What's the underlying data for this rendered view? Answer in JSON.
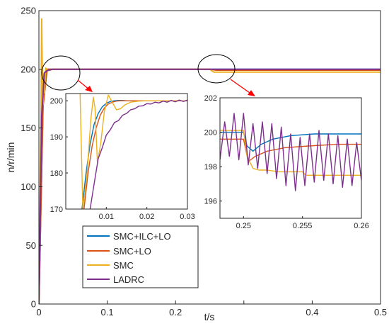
{
  "colors": {
    "smc_ilc_lo": "#0072BD",
    "smc_lo": "#D95319",
    "smc": "#EDB120",
    "ladrc": "#7E2F8E",
    "callout_arrow": "#FF0000",
    "axis": "#262626"
  },
  "chart_data": [
    {
      "id": "main",
      "type": "line",
      "title": "",
      "xlabel": "t/s",
      "ylabel": "n/r/min",
      "xlim": [
        0,
        0.5
      ],
      "ylim": [
        0,
        250
      ],
      "xticks": [
        0,
        0.1,
        0.2,
        0.3,
        0.4,
        0.5
      ],
      "xtick_labels": [
        "0",
        "0.1",
        "0.2",
        "",
        "0.4",
        "0.5"
      ],
      "yticks": [
        0,
        50,
        100,
        150,
        200,
        250
      ],
      "ytick_labels": [
        "0",
        "50",
        "100",
        "150",
        "200",
        "250"
      ],
      "grid": false,
      "legend": {
        "placement": "bottom-left",
        "entries": [
          "SMC+ILC+LO",
          "SMC+LO",
          "SMC",
          "LADRC"
        ]
      },
      "series": [
        {
          "name": "SMC+ILC+LO",
          "color_key": "smc_ilc_lo",
          "x": [
            0,
            0.006,
            0.012,
            0.5
          ],
          "y": [
            0,
            170,
            200,
            200
          ]
        },
        {
          "name": "SMC+LO",
          "color_key": "smc_lo",
          "x": [
            0,
            0.006,
            0.012,
            0.25,
            0.26,
            0.5
          ],
          "y": [
            0,
            168,
            200,
            200,
            199.3,
            199.3
          ]
        },
        {
          "name": "SMC",
          "color_key": "smc",
          "x": [
            0,
            0.003,
            0.004,
            0.005,
            0.006,
            0.007,
            0.008,
            0.01,
            0.014,
            0.02,
            0.25,
            0.256,
            0.5
          ],
          "y": [
            0,
            150,
            243,
            200,
            170,
            196,
            180,
            201,
            199,
            200,
            200,
            197.6,
            197.6
          ]
        },
        {
          "name": "LADRC",
          "color_key": "ladrc",
          "x": [
            0,
            0.004,
            0.008,
            0.012,
            0.016,
            0.02,
            0.025,
            0.03,
            0.5
          ],
          "y": [
            0,
            160,
            197,
            199,
            199.5,
            200,
            200,
            200,
            200
          ]
        }
      ],
      "callouts": [
        {
          "from_circle": "left",
          "to_inset": "inset_start"
        },
        {
          "from_circle": "right",
          "to_inset": "inset_step"
        }
      ]
    },
    {
      "id": "inset_start",
      "type": "line",
      "xlim": [
        0,
        0.03
      ],
      "ylim": [
        170,
        202
      ],
      "xticks": [
        0.01,
        0.02,
        0.03
      ],
      "xtick_labels": [
        "0.01",
        "0.02",
        "0.03"
      ],
      "yticks": [
        170,
        180,
        190,
        200
      ],
      "ytick_labels": [
        "170",
        "180",
        "190",
        "200"
      ],
      "series": [
        {
          "name": "SMC+ILC+LO",
          "color_key": "smc_ilc_lo",
          "x": [
            0.004,
            0.005,
            0.006,
            0.007,
            0.008,
            0.009,
            0.01,
            0.011,
            0.012,
            0.013,
            0.014,
            0.015,
            0.03
          ],
          "y": [
            170,
            180,
            188,
            193.5,
            196.5,
            198.3,
            199.3,
            199.8,
            200,
            200.1,
            200.1,
            200,
            200
          ]
        },
        {
          "name": "SMC+LO",
          "color_key": "smc_lo",
          "x": [
            0.0045,
            0.0055,
            0.0065,
            0.0075,
            0.0085,
            0.0095,
            0.0105,
            0.0115,
            0.0125,
            0.0135,
            0.015,
            0.03
          ],
          "y": [
            170,
            180,
            187.5,
            192.5,
            196,
            198,
            199.1,
            199.6,
            199.9,
            200,
            200,
            200
          ]
        },
        {
          "name": "SMC",
          "color_key": "smc",
          "x": [
            0.0035,
            0.0042,
            0.0052,
            0.0062,
            0.0068,
            0.0072,
            0.0078,
            0.0086,
            0.0095,
            0.0105,
            0.0115,
            0.0125,
            0.0135,
            0.0145,
            0.016,
            0.018,
            0.02,
            0.025,
            0.03
          ],
          "y": [
            203,
            170,
            179,
            195,
            201,
            198,
            183,
            188,
            197,
            201.6,
            199.5,
            197.5,
            197.8,
            198.8,
            199.6,
            199.9,
            200,
            200,
            200
          ]
        },
        {
          "name": "LADRC",
          "color_key": "ladrc",
          "x": [
            0.006,
            0.007,
            0.008,
            0.009,
            0.01,
            0.011,
            0.012,
            0.013,
            0.014,
            0.015,
            0.016,
            0.017,
            0.018,
            0.019,
            0.02,
            0.021,
            0.022,
            0.023,
            0.024,
            0.025,
            0.026,
            0.027,
            0.028,
            0.029,
            0.03
          ],
          "y": [
            170,
            177,
            184,
            187,
            190.5,
            192,
            194,
            194.5,
            196,
            196.5,
            197.5,
            197.8,
            198.5,
            198.6,
            199.2,
            199.1,
            199.6,
            199.4,
            199.9,
            199.6,
            200.1,
            199.7,
            200.2,
            199.8,
            200.2
          ]
        }
      ]
    },
    {
      "id": "inset_step",
      "type": "line",
      "xlim": [
        0.248,
        0.26
      ],
      "ylim": [
        195,
        202
      ],
      "xticks": [
        0.25,
        0.255,
        0.26
      ],
      "xtick_labels": [
        "0.25",
        "0.255",
        "0.26"
      ],
      "yticks": [
        196,
        198,
        200,
        202
      ],
      "ytick_labels": [
        "196",
        "198",
        "200",
        "202"
      ],
      "series": [
        {
          "name": "SMC+ILC+LO",
          "color_key": "smc_ilc_lo",
          "x": [
            0.248,
            0.25,
            0.2503,
            0.2508,
            0.2515,
            0.2525,
            0.254,
            0.256,
            0.26
          ],
          "y": [
            200,
            200,
            199.2,
            198.9,
            199.3,
            199.6,
            199.8,
            199.9,
            199.9
          ]
        },
        {
          "name": "SMC+LO",
          "color_key": "smc_lo",
          "x": [
            0.248,
            0.25,
            0.2504,
            0.251,
            0.252,
            0.2535,
            0.2555,
            0.258,
            0.26
          ],
          "y": [
            199.6,
            199.6,
            198.3,
            198.6,
            198.9,
            199.1,
            199.2,
            199.3,
            199.3
          ]
        },
        {
          "name": "SMC",
          "color_key": "smc",
          "x": [
            0.248,
            0.25,
            0.2503,
            0.2508,
            0.2513,
            0.252,
            0.253,
            0.255,
            0.2553,
            0.26
          ],
          "y": [
            200.1,
            200.1,
            198.6,
            197.9,
            197.8,
            197.8,
            197.7,
            197.7,
            197.5,
            197.5
          ]
        },
        {
          "name": "LADRC",
          "color_key": "ladrc",
          "x": [
            0.248,
            0.2484,
            0.2488,
            0.2492,
            0.2496,
            0.25,
            0.2504,
            0.2508,
            0.2512,
            0.2516,
            0.252,
            0.2524,
            0.2528,
            0.2532,
            0.2536,
            0.254,
            0.2544,
            0.2548,
            0.2552,
            0.2556,
            0.256,
            0.2564,
            0.2568,
            0.2572,
            0.2576,
            0.258,
            0.2584,
            0.2588,
            0.2592,
            0.2596,
            0.26
          ],
          "y": [
            198.4,
            200.6,
            198.6,
            201.1,
            198.4,
            201.1,
            198.1,
            200.5,
            197.9,
            200.6,
            197.6,
            200.5,
            197.3,
            200.3,
            196.9,
            199.9,
            196.6,
            199.7,
            196.9,
            199.9,
            197.1,
            200.1,
            197.2,
            199.9,
            197.0,
            199.8,
            196.8,
            199.6,
            196.9,
            199.4,
            197.2
          ]
        }
      ]
    }
  ]
}
